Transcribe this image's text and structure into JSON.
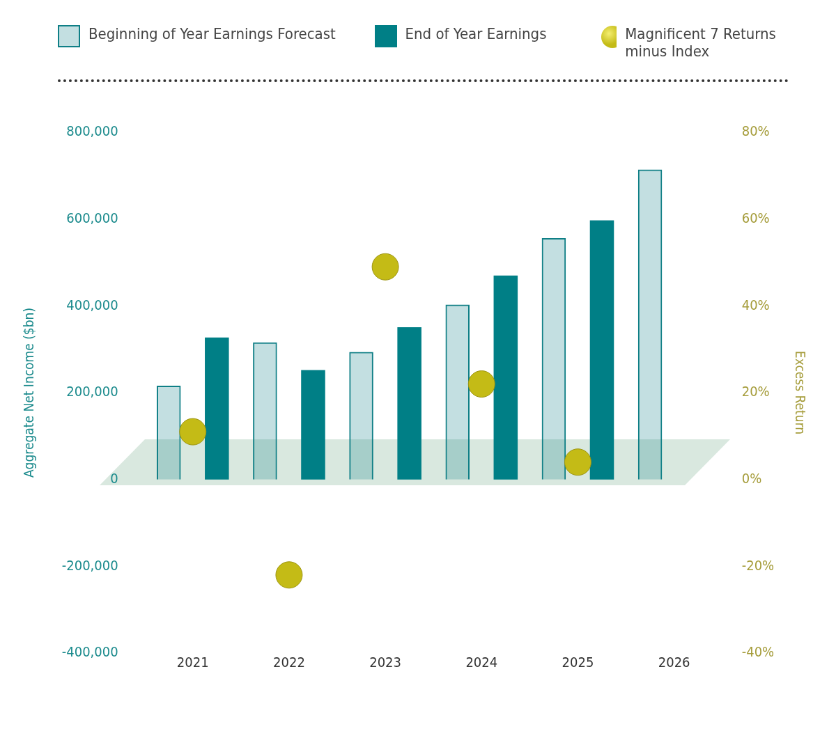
{
  "chart_data": {
    "type": "bar",
    "legend": "top",
    "ylabel": "Aggregate Net Income ($bn)",
    "y2label": "Excess Return",
    "categories": [
      "2021",
      "2022",
      "2023",
      "2024",
      "2025",
      "2026"
    ],
    "series": [
      {
        "name": "Beginning of Year Earnings Forecast",
        "color": "#0f7f86",
        "values": [
          216000,
          316000,
          294000,
          403000,
          556000,
          714000
        ]
      },
      {
        "name": "End of Year Earnings",
        "color": "#007f86",
        "values": [
          327000,
          252000,
          351000,
          470000,
          597000,
          null
        ]
      },
      {
        "name": "Magnificent 7 Returns minus Index",
        "type": "scatter",
        "axis": "y2",
        "color": "#c4bb16",
        "values": [
          11,
          -22,
          49,
          22,
          4,
          null
        ]
      }
    ],
    "ylim": [
      -400000,
      800000
    ],
    "yticks": [
      {
        "value": -400000,
        "label": "-400,000"
      },
      {
        "value": -200000,
        "label": "-200,000"
      },
      {
        "value": 0,
        "label": "0"
      },
      {
        "value": 200000,
        "label": "200,000"
      },
      {
        "value": 400000,
        "label": "400,000"
      },
      {
        "value": 600000,
        "label": "600,000"
      },
      {
        "value": 800000,
        "label": "800,000"
      }
    ],
    "y2lim": [
      -40,
      80
    ],
    "y2ticks": [
      {
        "value": -40,
        "label": "-40%"
      },
      {
        "value": -20,
        "label": "-20%"
      },
      {
        "value": 0,
        "label": "0%"
      },
      {
        "value": 20,
        "label": "20%"
      },
      {
        "value": 40,
        "label": "40%"
      },
      {
        "value": 60,
        "label": "60%"
      },
      {
        "value": 80,
        "label": "80%"
      }
    ],
    "grid": false
  }
}
